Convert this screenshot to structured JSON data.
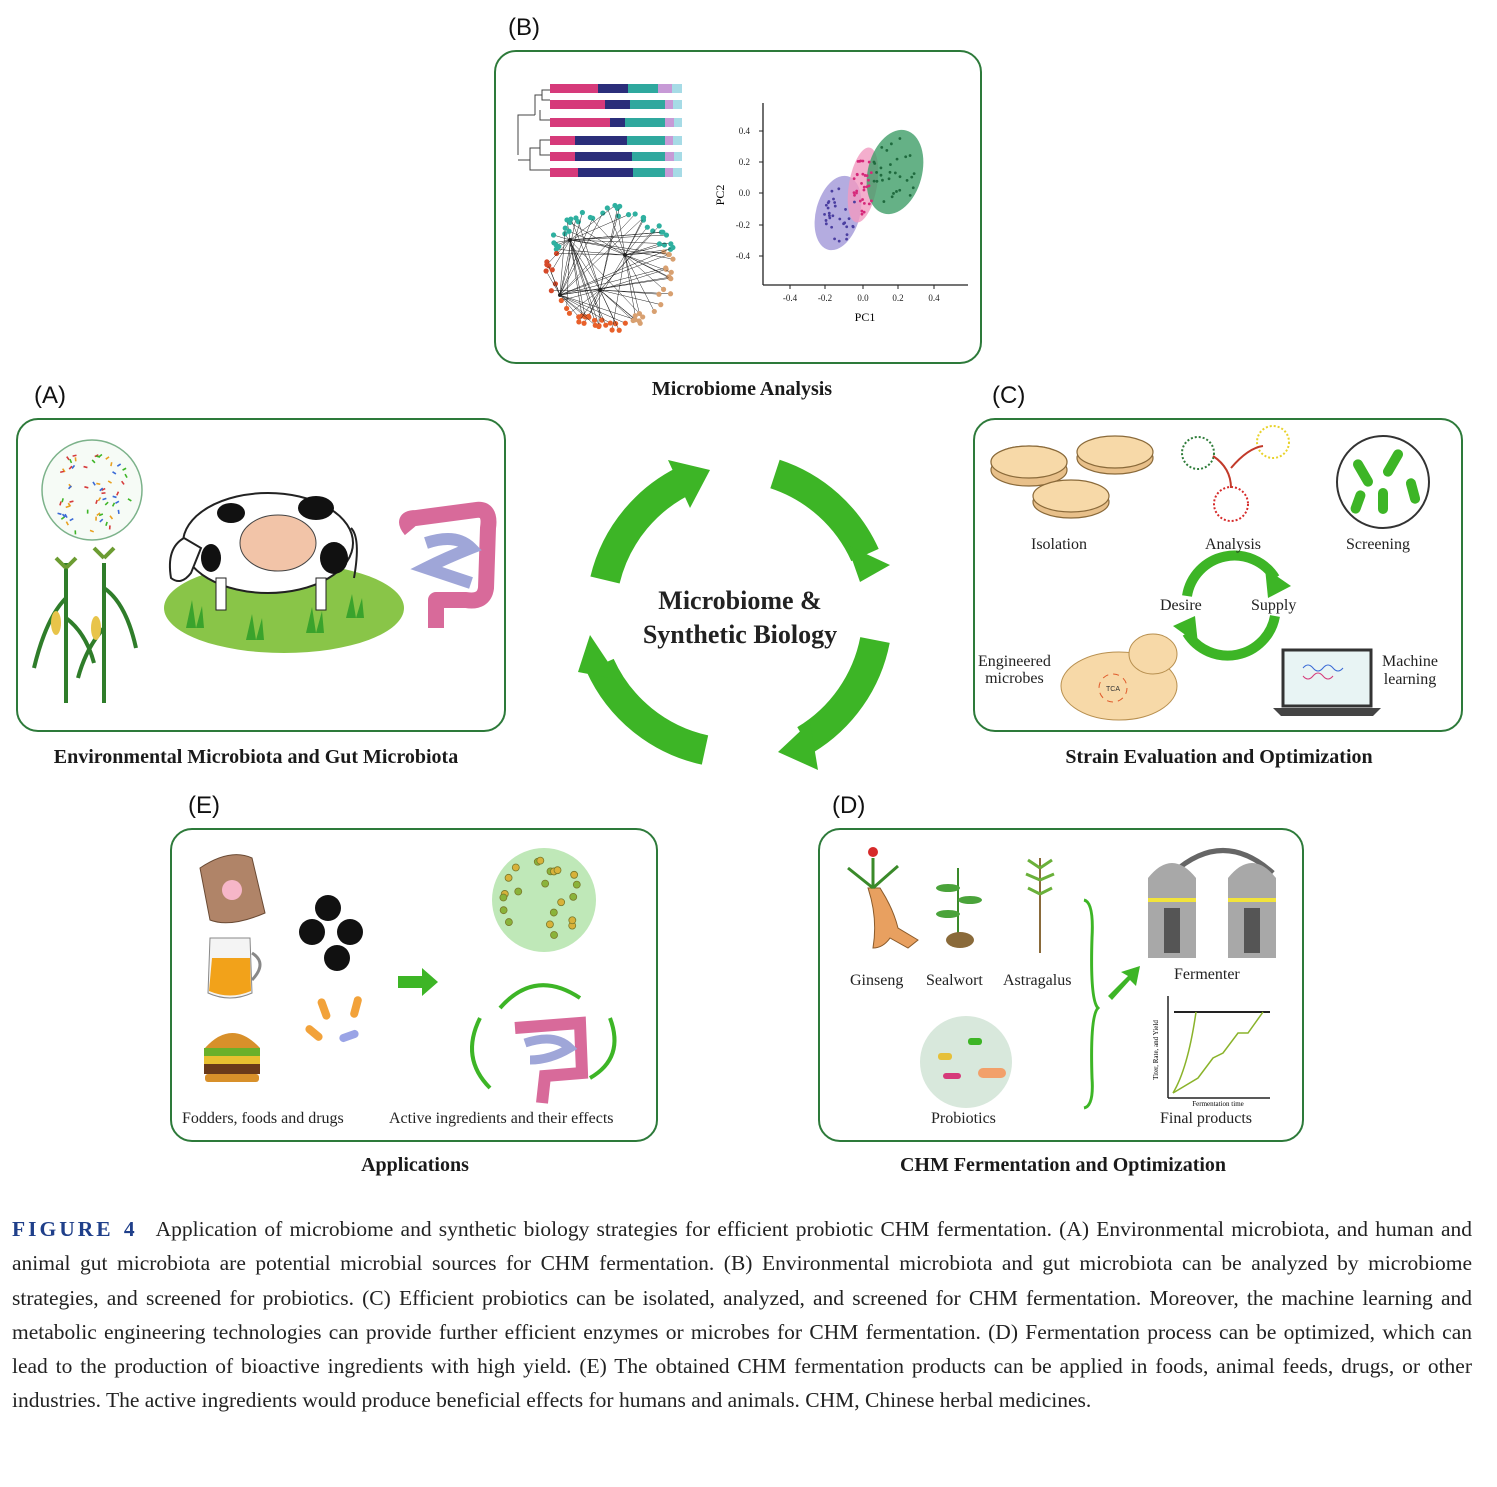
{
  "center": {
    "line1": "Microbiome &",
    "line2": "Synthetic Biology"
  },
  "panels": {
    "A": {
      "letter": "(A)",
      "title": "Environmental Microbiota and Gut Microbiota"
    },
    "B": {
      "letter": "(B)",
      "title": "Microbiome Analysis",
      "pca": {
        "xlabel": "PC1",
        "ylabel": "PC2",
        "xticks": [
          "-0.4",
          "-0.2",
          "0.0",
          "0.2",
          "0.4"
        ],
        "yticks": [
          "0.4",
          "0.2",
          "0.0",
          "-0.2",
          "-0.4"
        ]
      }
    },
    "C": {
      "letter": "(C)",
      "title": "Strain Evaluation and Optimization",
      "labels": {
        "isolation": "Isolation",
        "analysis": "Analysis",
        "screening": "Screening",
        "desire": "Desire",
        "supply": "Supply",
        "engineered1": "Engineered",
        "engineered2": "microbes",
        "ml1": "Machine",
        "ml2": "learning",
        "tca": "TCA"
      }
    },
    "D": {
      "letter": "(D)",
      "title": "CHM Fermentation and Optimization",
      "labels": {
        "ginseng": "Ginseng",
        "sealwort": "Sealwort",
        "astragalus": "Astragalus",
        "probiotics": "Probiotics",
        "fermenter": "Fermenter",
        "final": "Final products",
        "xaxis": "Fermentation time",
        "yaxis": "Titer, Rate, and Yield"
      }
    },
    "E": {
      "letter": "(E)",
      "title": "Applications",
      "labels": {
        "left": "Fodders, foods and drugs",
        "right": "Active ingredients and their effects"
      }
    }
  },
  "caption": {
    "label": "FIGURE 4",
    "text": "Application of microbiome and synthetic biology strategies for efficient probiotic CHM fermentation. (A) Environmental microbiota, and human and animal gut microbiota are potential microbial sources for CHM fermentation. (B) Environmental microbiota and gut microbiota can be analyzed by microbiome strategies, and screened for probiotics. (C) Efficient probiotics can be isolated, analyzed, and screened for CHM fermentation. Moreover, the machine learning and metabolic engineering technologies can provide further efficient enzymes or microbes for CHM fermentation. (D) Fermentation process can be optimized, which can lead to the production of bioactive ingredients with high yield. (E) The obtained CHM fermentation products can be applied in foods, animal feeds, drugs, or other industries. The active ingredients would produce beneficial effects for humans and animals. CHM, Chinese herbal medicines."
  },
  "colors": {
    "border": "#2d7a3a",
    "arrow": "#3db526",
    "caption_label": "#1f3f8a"
  }
}
